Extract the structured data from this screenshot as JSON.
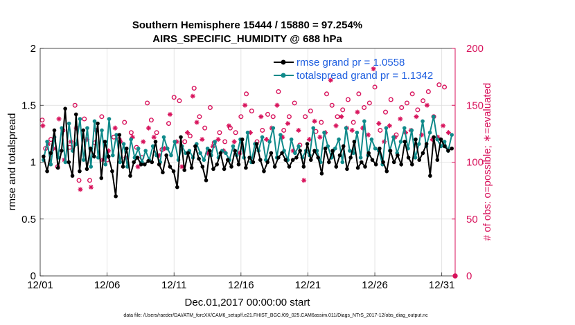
{
  "chart_data": {
    "type": "line",
    "title": "Southern Hemisphere 15444 / 15880 = 97.254%",
    "subtitle": "AIRS_SPECIFIC_HUMIDITY @ 688 hPa",
    "xlabel": "Dec.01,2017 00:00:00 start",
    "ylabel_left": "rmse and totalspread",
    "ylabel_right": "# of obs: o=possible; ∗=evaluated",
    "x_ticks": [
      "12/01",
      "12/06",
      "12/11",
      "12/16",
      "12/21",
      "12/26",
      "12/31"
    ],
    "y_ticks_left": [
      "0",
      "0.5",
      "1",
      "1.5",
      "2"
    ],
    "y_ticks_right": [
      "0",
      "50",
      "100",
      "150",
      "200"
    ],
    "ylim_left": [
      0,
      2
    ],
    "ylim_right": [
      0,
      200
    ],
    "xlim_days": [
      0,
      31
    ],
    "colors": {
      "rmse": "#000000",
      "totalspread": "#0f8a8a",
      "obs": "#d8135c",
      "legend_text": "#1f5fe0",
      "grid": "#dcdcdc"
    },
    "series": [
      {
        "name": "rmse",
        "label": "rmse grand pr = 1.0558",
        "values": [
          1.05,
          0.92,
          1.08,
          1.28,
          0.95,
          1.1,
          1.47,
          1.0,
          0.88,
          1.42,
          0.92,
          1.28,
          0.94,
          1.12,
          1.05,
          1.34,
          0.86,
          1.18,
          1.05,
          0.92,
          0.7,
          1.24,
          0.96,
          1.12,
          0.88,
          1.0,
          1.04,
          0.98,
          0.98,
          1.01,
          1.0,
          1.18,
          0.98,
          0.91,
          1.06,
          0.96,
          0.92,
          0.78,
          1.22,
          0.93,
          1.08,
          0.95,
          1.14,
          1.03,
          0.96,
          0.84,
          1.1,
          0.94,
          0.98,
          1.08,
          0.94,
          1.02,
          0.96,
          1.1,
          0.98,
          1.2,
          0.95,
          1.04,
          1.0,
          1.16,
          1.02,
          0.92,
          1.0,
          1.08,
          0.96,
          1.04,
          1.08,
          1.02,
          0.96,
          1.02,
          1.04,
          1.1,
          0.96,
          1.16,
          1.02,
          1.1,
          1.04,
          0.9,
          1.12,
          1.0,
          1.1,
          0.96,
          1.06,
          1.14,
          0.94,
          1.04,
          1.18,
          0.95,
          1.0,
          0.96,
          1.08,
          1.02,
          0.98,
          1.12,
          1.0,
          0.92,
          1.1,
          1.0,
          1.06,
          0.98,
          1.18,
          1.04,
          0.98,
          1.2,
          1.02,
          1.08,
          1.16,
          0.88,
          1.22,
          1.02,
          1.2,
          1.14,
          1.1,
          1.12
        ]
      },
      {
        "name": "totalspread",
        "label": "totalspread grand pr = 1.1342",
        "values": [
          1.02,
          1.18,
          0.98,
          1.22,
          1.04,
          1.3,
          1.0,
          1.34,
          1.1,
          1.16,
          1.38,
          1.02,
          1.3,
          0.96,
          1.36,
          1.04,
          1.28,
          0.98,
          1.38,
          1.06,
          1.24,
          1.0,
          1.16,
          0.96,
          1.2,
          1.04,
          1.12,
          1.0,
          1.1,
          1.02,
          1.14,
          1.06,
          1.0,
          1.22,
          1.12,
          1.06,
          1.18,
          1.02,
          1.14,
          1.08,
          1.1,
          1.04,
          1.16,
          1.08,
          1.02,
          1.12,
          1.06,
          1.18,
          1.04,
          1.1,
          1.08,
          1.02,
          1.14,
          1.06,
          1.2,
          1.04,
          1.26,
          1.0,
          1.16,
          1.1,
          1.22,
          1.02,
          1.18,
          1.3,
          1.04,
          1.24,
          1.1,
          1.02,
          1.2,
          1.08,
          1.14,
          1.04,
          1.1,
          1.06,
          1.3,
          1.1,
          1.0,
          1.26,
          1.14,
          1.04,
          1.12,
          1.2,
          1.0,
          1.3,
          1.1,
          1.08,
          1.26,
          1.04,
          1.36,
          1.06,
          1.2,
          1.12,
          1.1,
          0.98,
          1.3,
          1.1,
          1.22,
          1.08,
          1.18,
          1.3,
          1.12,
          1.28,
          1.04,
          1.16,
          1.36,
          1.14,
          1.26,
          1.4,
          1.2,
          1.14,
          1.18,
          1.1,
          1.24
        ]
      }
    ],
    "obs_possible": [
      [
        0.15,
        137
      ],
      [
        0.4,
        112
      ],
      [
        0.8,
        120
      ],
      [
        1.3,
        96
      ],
      [
        1.7,
        128
      ],
      [
        2.2,
        113
      ],
      [
        2.6,
        150
      ],
      [
        2.9,
        84
      ],
      [
        3.3,
        138
      ],
      [
        3.7,
        84
      ],
      [
        4.1,
        117
      ],
      [
        4.6,
        140
      ],
      [
        5.0,
        102
      ],
      [
        5.5,
        122
      ],
      [
        5.9,
        120
      ],
      [
        6.3,
        135
      ],
      [
        6.8,
        126
      ],
      [
        7.2,
        113
      ],
      [
        7.6,
        104
      ],
      [
        8.0,
        152
      ],
      [
        8.3,
        137
      ],
      [
        8.7,
        126
      ],
      [
        9.1,
        111
      ],
      [
        9.6,
        134
      ],
      [
        10.0,
        157
      ],
      [
        10.4,
        154
      ],
      [
        10.8,
        118
      ],
      [
        11.2,
        123
      ],
      [
        11.5,
        165
      ],
      [
        11.9,
        140
      ],
      [
        12.3,
        130
      ],
      [
        12.7,
        148
      ],
      [
        13.0,
        117
      ],
      [
        13.4,
        126
      ],
      [
        13.8,
        118
      ],
      [
        14.2,
        130
      ],
      [
        14.6,
        126
      ],
      [
        15.0,
        140
      ],
      [
        15.4,
        160
      ],
      [
        15.8,
        145
      ],
      [
        16.2,
        118
      ],
      [
        16.6,
        128
      ],
      [
        17.0,
        142
      ],
      [
        17.4,
        140
      ],
      [
        17.8,
        162
      ],
      [
        18.2,
        128
      ],
      [
        18.6,
        140
      ],
      [
        19.0,
        152
      ],
      [
        19.4,
        115
      ],
      [
        19.8,
        140
      ],
      [
        20.2,
        145
      ],
      [
        20.6,
        127
      ],
      [
        21.0,
        135
      ],
      [
        21.4,
        160
      ],
      [
        21.8,
        150
      ],
      [
        22.2,
        140
      ],
      [
        22.6,
        146
      ],
      [
        23.0,
        155
      ],
      [
        23.4,
        135
      ],
      [
        23.8,
        160
      ],
      [
        24.2,
        148
      ],
      [
        24.6,
        152
      ],
      [
        25.0,
        166
      ],
      [
        25.4,
        128
      ],
      [
        25.8,
        144
      ],
      [
        26.2,
        155
      ],
      [
        26.6,
        124
      ],
      [
        27.0,
        148
      ],
      [
        27.4,
        152
      ],
      [
        27.8,
        160
      ],
      [
        28.2,
        146
      ],
      [
        28.6,
        154
      ],
      [
        29.0,
        162
      ],
      [
        29.4,
        140
      ],
      [
        29.8,
        168
      ],
      [
        30.2,
        166
      ]
    ],
    "obs_evaluated": [
      [
        0.2,
        132
      ],
      [
        0.6,
        116
      ],
      [
        1.0,
        112
      ],
      [
        1.4,
        138
      ],
      [
        1.8,
        102
      ],
      [
        2.3,
        118
      ],
      [
        2.7,
        130
      ],
      [
        3.0,
        76
      ],
      [
        3.5,
        120
      ],
      [
        3.8,
        78
      ],
      [
        4.2,
        128
      ],
      [
        4.7,
        102
      ],
      [
        5.1,
        110
      ],
      [
        5.6,
        130
      ],
      [
        6.0,
        118
      ],
      [
        6.4,
        104
      ],
      [
        6.9,
        122
      ],
      [
        7.3,
        96
      ],
      [
        7.7,
        118
      ],
      [
        8.1,
        130
      ],
      [
        8.5,
        122
      ],
      [
        8.9,
        106
      ],
      [
        9.3,
        112
      ],
      [
        9.7,
        142
      ],
      [
        10.2,
        118
      ],
      [
        10.6,
        96
      ],
      [
        11.0,
        126
      ],
      [
        11.4,
        158
      ],
      [
        11.7,
        135
      ],
      [
        12.1,
        120
      ],
      [
        12.5,
        108
      ],
      [
        12.9,
        114
      ],
      [
        13.3,
        120
      ],
      [
        13.7,
        110
      ],
      [
        14.1,
        132
      ],
      [
        14.5,
        118
      ],
      [
        14.9,
        108
      ],
      [
        15.3,
        150
      ],
      [
        15.7,
        126
      ],
      [
        16.1,
        116
      ],
      [
        16.5,
        140
      ],
      [
        16.9,
        120
      ],
      [
        17.3,
        130
      ],
      [
        17.7,
        150
      ],
      [
        18.1,
        122
      ],
      [
        18.5,
        134
      ],
      [
        18.9,
        110
      ],
      [
        19.3,
        128
      ],
      [
        19.7,
        84
      ],
      [
        20.1,
        120
      ],
      [
        20.5,
        136
      ],
      [
        20.9,
        122
      ],
      [
        21.3,
        126
      ],
      [
        21.7,
        172
      ],
      [
        22.1,
        132
      ],
      [
        22.5,
        140
      ],
      [
        22.9,
        130
      ],
      [
        23.3,
        128
      ],
      [
        23.7,
        144
      ],
      [
        24.1,
        130
      ],
      [
        24.5,
        124
      ],
      [
        24.9,
        182
      ],
      [
        25.3,
        134
      ],
      [
        25.7,
        118
      ],
      [
        26.1,
        132
      ],
      [
        26.5,
        122
      ],
      [
        26.9,
        138
      ],
      [
        27.3,
        126
      ],
      [
        27.7,
        128
      ],
      [
        28.1,
        140
      ],
      [
        28.5,
        124
      ],
      [
        28.9,
        150
      ],
      [
        29.3,
        120
      ],
      [
        29.7,
        122
      ],
      [
        30.1,
        132
      ],
      [
        30.5,
        126
      ]
    ],
    "footnote": "data file: /Users/raeder/DAI/ATM_forcXX/CAM6_setup/f.e21.FHIST_BGC.f09_025.CAM6assim.011/Diags_NTrS_2017-12/obs_diag_output.nc"
  }
}
